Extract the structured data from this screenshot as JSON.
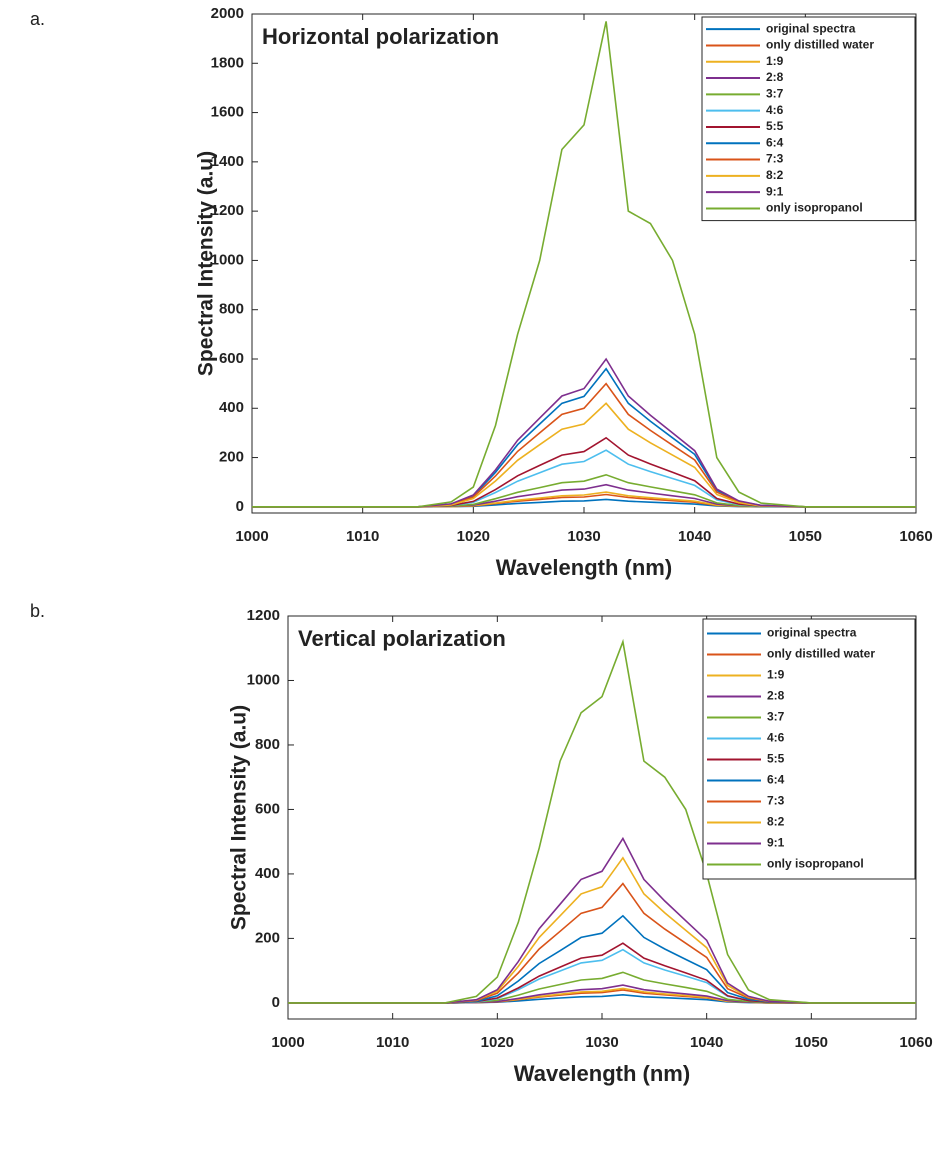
{
  "chart_data": [
    {
      "type": "line",
      "panel_label": "a.",
      "title": "Horizontal polarization",
      "xlabel": "Wavelength (nm)",
      "ylabel": "Spectral Intensity (a.u)",
      "x": [
        1000,
        1015,
        1018,
        1020,
        1022,
        1024,
        1026,
        1028,
        1030,
        1032,
        1034,
        1036,
        1038,
        1040,
        1042,
        1044,
        1046,
        1050,
        1060
      ],
      "xlim": [
        1000,
        1060
      ],
      "xticks": [
        1000,
        1010,
        1020,
        1030,
        1040,
        1050,
        1060
      ],
      "ylim": [
        -25,
        2000
      ],
      "yticks": [
        0,
        200,
        400,
        600,
        800,
        1000,
        1200,
        1400,
        1600,
        1800,
        2000
      ],
      "legend": "upper right",
      "series": [
        {
          "name": "original spectra",
          "color": "#0072BD",
          "values": [
            0,
            0,
            1,
            2,
            8,
            14,
            18,
            23,
            24,
            30,
            23,
            19,
            15,
            11,
            4,
            1,
            0,
            0,
            0
          ]
        },
        {
          "name": "only distilled water",
          "color": "#D95319",
          "values": [
            0,
            0,
            1,
            4,
            13,
            23,
            30,
            38,
            40,
            50,
            38,
            31,
            25,
            19,
            6,
            2,
            1,
            0,
            0
          ]
        },
        {
          "name": "1:9",
          "color": "#EDB120",
          "values": [
            0,
            0,
            1,
            5,
            15,
            27,
            36,
            45,
            48,
            60,
            45,
            37,
            30,
            23,
            7,
            2,
            1,
            0,
            0
          ]
        },
        {
          "name": "2:8",
          "color": "#7E2F8E",
          "values": [
            0,
            0,
            2,
            7,
            23,
            41,
            54,
            68,
            72,
            90,
            68,
            56,
            45,
            34,
            11,
            4,
            1,
            0,
            0
          ]
        },
        {
          "name": "3:7",
          "color": "#77AC30",
          "values": [
            0,
            0,
            3,
            10,
            33,
            59,
            78,
            98,
            104,
            130,
            98,
            81,
            65,
            49,
            16,
            5,
            1,
            0,
            0
          ]
        },
        {
          "name": "4:6",
          "color": "#4DBEEE",
          "values": [
            0,
            0,
            5,
            18,
            58,
            104,
            138,
            173,
            184,
            230,
            173,
            143,
            115,
            87,
            28,
            9,
            2,
            0,
            0
          ]
        },
        {
          "name": "5:5",
          "color": "#A2142F",
          "values": [
            0,
            0,
            6,
            22,
            70,
            126,
            168,
            210,
            224,
            280,
            210,
            174,
            140,
            106,
            34,
            11,
            3,
            0,
            0
          ]
        },
        {
          "name": "6:4",
          "color": "#0072BD",
          "values": [
            0,
            0,
            11,
            45,
            140,
            252,
            336,
            420,
            448,
            560,
            420,
            347,
            280,
            213,
            67,
            22,
            6,
            0,
            0
          ]
        },
        {
          "name": "7:3",
          "color": "#D95319",
          "values": [
            0,
            0,
            10,
            40,
            125,
            225,
            300,
            375,
            400,
            500,
            375,
            310,
            250,
            190,
            60,
            20,
            5,
            0,
            0
          ]
        },
        {
          "name": "8:2",
          "color": "#EDB120",
          "values": [
            0,
            0,
            8,
            34,
            105,
            189,
            252,
            315,
            336,
            420,
            315,
            260,
            210,
            160,
            50,
            17,
            4,
            0,
            0
          ]
        },
        {
          "name": "9:1",
          "color": "#7E2F8E",
          "values": [
            0,
            0,
            12,
            48,
            150,
            270,
            360,
            450,
            480,
            600,
            450,
            372,
            300,
            228,
            72,
            24,
            6,
            0,
            0
          ]
        },
        {
          "name": "only isopropanol",
          "color": "#77AC30",
          "values": [
            0,
            0,
            20,
            80,
            330,
            700,
            1000,
            1450,
            1550,
            1970,
            1200,
            1150,
            1000,
            700,
            200,
            60,
            15,
            0,
            0
          ]
        }
      ]
    },
    {
      "type": "line",
      "panel_label": "b.",
      "title": "Vertical polarization",
      "xlabel": "Wavelength (nm)",
      "ylabel": "Spectral Intensity (a.u)",
      "x": [
        1000,
        1015,
        1018,
        1020,
        1022,
        1024,
        1026,
        1028,
        1030,
        1032,
        1034,
        1036,
        1038,
        1040,
        1042,
        1044,
        1046,
        1050,
        1060
      ],
      "xlim": [
        1000,
        1060
      ],
      "xticks": [
        1000,
        1010,
        1020,
        1030,
        1040,
        1050,
        1060
      ],
      "ylim": [
        -50,
        1200
      ],
      "yticks": [
        0,
        200,
        400,
        600,
        800,
        1000,
        1200
      ],
      "legend": "upper right",
      "series": [
        {
          "name": "original spectra",
          "color": "#0072BD",
          "values": [
            0,
            0,
            1,
            2,
            6,
            11,
            15,
            19,
            20,
            25,
            19,
            16,
            13,
            10,
            3,
            1,
            0,
            0,
            0
          ]
        },
        {
          "name": "only distilled water",
          "color": "#D95319",
          "values": [
            0,
            0,
            1,
            3,
            10,
            18,
            24,
            30,
            32,
            40,
            30,
            25,
            20,
            15,
            5,
            2,
            0,
            0,
            0
          ]
        },
        {
          "name": "1:9",
          "color": "#EDB120",
          "values": [
            0,
            0,
            1,
            4,
            11,
            20,
            27,
            34,
            36,
            45,
            34,
            28,
            23,
            17,
            5,
            2,
            0,
            0,
            0
          ]
        },
        {
          "name": "2:8",
          "color": "#7E2F8E",
          "values": [
            0,
            0,
            1,
            4,
            14,
            25,
            33,
            41,
            44,
            55,
            41,
            34,
            28,
            21,
            7,
            2,
            1,
            0,
            0
          ]
        },
        {
          "name": "3:7",
          "color": "#77AC30",
          "values": [
            0,
            0,
            2,
            8,
            24,
            43,
            57,
            71,
            76,
            95,
            71,
            59,
            48,
            36,
            11,
            4,
            1,
            0,
            0
          ]
        },
        {
          "name": "4:6",
          "color": "#4DBEEE",
          "values": [
            0,
            0,
            3,
            13,
            41,
            74,
            99,
            124,
            132,
            165,
            124,
            102,
            83,
            63,
            20,
            7,
            2,
            0,
            0
          ]
        },
        {
          "name": "5:5",
          "color": "#A2142F",
          "values": [
            0,
            0,
            4,
            15,
            46,
            83,
            111,
            139,
            148,
            185,
            139,
            115,
            93,
            70,
            22,
            7,
            2,
            0,
            0
          ]
        },
        {
          "name": "6:4",
          "color": "#0072BD",
          "values": [
            0,
            0,
            5,
            22,
            68,
            122,
            162,
            203,
            216,
            270,
            203,
            167,
            135,
            103,
            32,
            11,
            3,
            0,
            0
          ]
        },
        {
          "name": "7:3",
          "color": "#D95319",
          "values": [
            0,
            0,
            7,
            30,
            93,
            167,
            222,
            278,
            296,
            370,
            278,
            229,
            185,
            141,
            44,
            15,
            4,
            0,
            0
          ]
        },
        {
          "name": "8:2",
          "color": "#EDB120",
          "values": [
            0,
            0,
            9,
            36,
            113,
            203,
            270,
            338,
            360,
            450,
            338,
            279,
            225,
            171,
            54,
            18,
            5,
            0,
            0
          ]
        },
        {
          "name": "9:1",
          "color": "#7E2F8E",
          "values": [
            0,
            0,
            10,
            41,
            128,
            230,
            306,
            383,
            408,
            510,
            383,
            316,
            255,
            194,
            61,
            20,
            5,
            0,
            0
          ]
        },
        {
          "name": "only isopropanol",
          "color": "#77AC30",
          "values": [
            0,
            0,
            20,
            80,
            250,
            480,
            750,
            900,
            950,
            1120,
            750,
            700,
            600,
            400,
            150,
            40,
            10,
            0,
            0
          ]
        }
      ]
    }
  ]
}
